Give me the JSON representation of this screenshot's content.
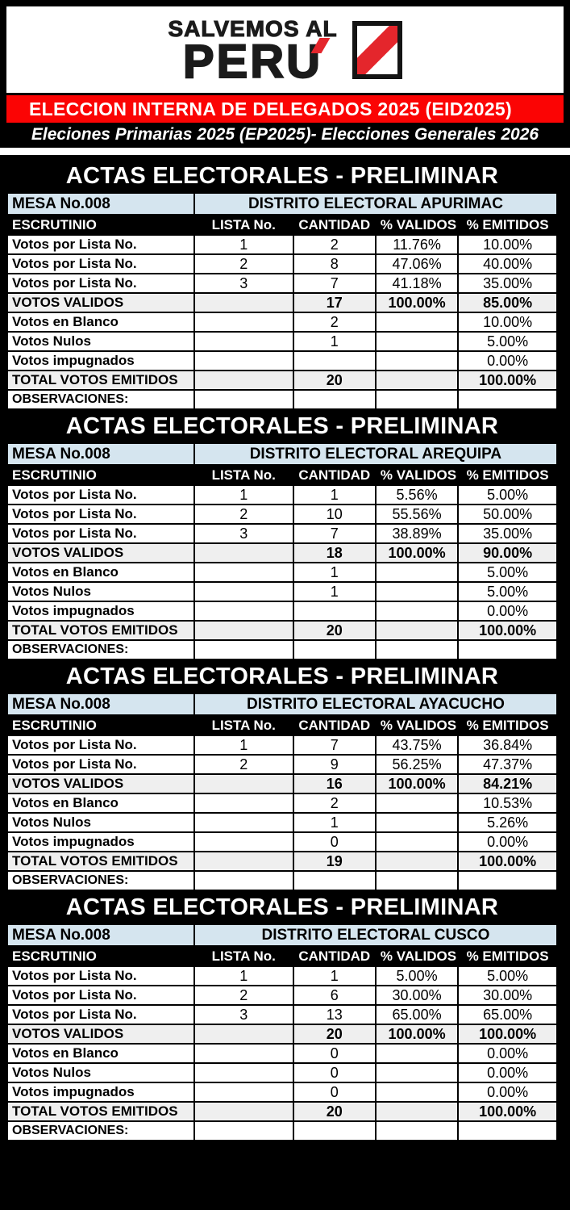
{
  "header": {
    "logo_line1": "SALVEMOS AL",
    "logo_line2": "PERU",
    "banner_text": "ELECCION INTERNA DE DELEGADOS 2025 (EID2025)",
    "subtitle_text": "Eleciones Primarias 2025 (EP2025)- Elecciones Generales 2026"
  },
  "colors": {
    "banner_red": "#fb0404",
    "logo_red": "#e4262c",
    "mesa_blue": "#d5e5ef",
    "total_gray": "#efefef"
  },
  "acta": {
    "section_title": "ACTAS ELECTORALES - PRELIMINAR",
    "mesa_label": "MESA No.008",
    "columns": [
      "ESCRUTINIO",
      "LISTA No.",
      "CANTIDAD",
      "% VALIDOS",
      "% EMITIDOS"
    ],
    "tables": [
      {
        "district": "DISTRITO ELECTORAL APURIMAC",
        "rows": [
          {
            "label": "Votos por Lista No.",
            "lista": "1",
            "cantidad": "2",
            "validos": "11.76%",
            "emitidos": "10.00%",
            "style": ""
          },
          {
            "label": "Votos por Lista No.",
            "lista": "2",
            "cantidad": "8",
            "validos": "47.06%",
            "emitidos": "40.00%",
            "style": ""
          },
          {
            "label": "Votos por Lista No.",
            "lista": "3",
            "cantidad": "7",
            "validos": "41.18%",
            "emitidos": "35.00%",
            "style": ""
          },
          {
            "label": "VOTOS VALIDOS",
            "lista": "",
            "cantidad": "17",
            "validos": "100.00%",
            "emitidos": "85.00%",
            "style": "total"
          },
          {
            "label": "Votos en Blanco",
            "lista": "",
            "cantidad": "2",
            "validos": "",
            "emitidos": "10.00%",
            "style": ""
          },
          {
            "label": "Votos Nulos",
            "lista": "",
            "cantidad": "1",
            "validos": "",
            "emitidos": "5.00%",
            "style": ""
          },
          {
            "label": "Votos impugnados",
            "lista": "",
            "cantidad": "",
            "validos": "",
            "emitidos": "0.00%",
            "style": ""
          },
          {
            "label": "TOTAL VOTOS EMITIDOS",
            "lista": "",
            "cantidad": "20",
            "validos": "",
            "emitidos": "100.00%",
            "style": "total"
          },
          {
            "label": "OBSERVACIONES:",
            "lista": "",
            "cantidad": "",
            "validos": "",
            "emitidos": "",
            "style": "obs"
          }
        ]
      },
      {
        "district": "DISTRITO ELECTORAL AREQUIPA",
        "rows": [
          {
            "label": "Votos por Lista No.",
            "lista": "1",
            "cantidad": "1",
            "validos": "5.56%",
            "emitidos": "5.00%",
            "style": ""
          },
          {
            "label": "Votos por Lista No.",
            "lista": "2",
            "cantidad": "10",
            "validos": "55.56%",
            "emitidos": "50.00%",
            "style": ""
          },
          {
            "label": "Votos por Lista No.",
            "lista": "3",
            "cantidad": "7",
            "validos": "38.89%",
            "emitidos": "35.00%",
            "style": ""
          },
          {
            "label": "VOTOS VALIDOS",
            "lista": "",
            "cantidad": "18",
            "validos": "100.00%",
            "emitidos": "90.00%",
            "style": "total"
          },
          {
            "label": "Votos en Blanco",
            "lista": "",
            "cantidad": "1",
            "validos": "",
            "emitidos": "5.00%",
            "style": ""
          },
          {
            "label": "Votos Nulos",
            "lista": "",
            "cantidad": "1",
            "validos": "",
            "emitidos": "5.00%",
            "style": ""
          },
          {
            "label": "Votos impugnados",
            "lista": "",
            "cantidad": "",
            "validos": "",
            "emitidos": "0.00%",
            "style": ""
          },
          {
            "label": "TOTAL VOTOS EMITIDOS",
            "lista": "",
            "cantidad": "20",
            "validos": "",
            "emitidos": "100.00%",
            "style": "total"
          },
          {
            "label": "OBSERVACIONES:",
            "lista": "",
            "cantidad": "",
            "validos": "",
            "emitidos": "",
            "style": "obs"
          }
        ]
      },
      {
        "district": "DISTRITO ELECTORAL AYACUCHO",
        "rows": [
          {
            "label": "Votos por Lista No.",
            "lista": "1",
            "cantidad": "7",
            "validos": "43.75%",
            "emitidos": "36.84%",
            "style": ""
          },
          {
            "label": "Votos por Lista No.",
            "lista": "2",
            "cantidad": "9",
            "validos": "56.25%",
            "emitidos": "47.37%",
            "style": ""
          },
          {
            "label": "VOTOS VALIDOS",
            "lista": "",
            "cantidad": "16",
            "validos": "100.00%",
            "emitidos": "84.21%",
            "style": "total"
          },
          {
            "label": "Votos en Blanco",
            "lista": "",
            "cantidad": "2",
            "validos": "",
            "emitidos": "10.53%",
            "style": ""
          },
          {
            "label": "Votos Nulos",
            "lista": "",
            "cantidad": "1",
            "validos": "",
            "emitidos": "5.26%",
            "style": ""
          },
          {
            "label": "Votos impugnados",
            "lista": "",
            "cantidad": "0",
            "validos": "",
            "emitidos": "0.00%",
            "style": ""
          },
          {
            "label": "TOTAL VOTOS EMITIDOS",
            "lista": "",
            "cantidad": "19",
            "validos": "",
            "emitidos": "100.00%",
            "style": "total"
          },
          {
            "label": "OBSERVACIONES:",
            "lista": "",
            "cantidad": "",
            "validos": "",
            "emitidos": "",
            "style": "obs"
          }
        ]
      },
      {
        "district": "DISTRITO ELECTORAL CUSCO",
        "rows": [
          {
            "label": "Votos por Lista No.",
            "lista": "1",
            "cantidad": "1",
            "validos": "5.00%",
            "emitidos": "5.00%",
            "style": ""
          },
          {
            "label": "Votos por Lista No.",
            "lista": "2",
            "cantidad": "6",
            "validos": "30.00%",
            "emitidos": "30.00%",
            "style": ""
          },
          {
            "label": "Votos por Lista No.",
            "lista": "3",
            "cantidad": "13",
            "validos": "65.00%",
            "emitidos": "65.00%",
            "style": ""
          },
          {
            "label": "VOTOS VALIDOS",
            "lista": "",
            "cantidad": "20",
            "validos": "100.00%",
            "emitidos": "100.00%",
            "style": "total"
          },
          {
            "label": "Votos en Blanco",
            "lista": "",
            "cantidad": "0",
            "validos": "",
            "emitidos": "0.00%",
            "style": ""
          },
          {
            "label": "Votos Nulos",
            "lista": "",
            "cantidad": "0",
            "validos": "",
            "emitidos": "0.00%",
            "style": ""
          },
          {
            "label": "Votos impugnados",
            "lista": "",
            "cantidad": "0",
            "validos": "",
            "emitidos": "0.00%",
            "style": ""
          },
          {
            "label": "TOTAL VOTOS EMITIDOS",
            "lista": "",
            "cantidad": "20",
            "validos": "",
            "emitidos": "100.00%",
            "style": "total"
          },
          {
            "label": "OBSERVACIONES:",
            "lista": "",
            "cantidad": "",
            "validos": "",
            "emitidos": "",
            "style": "obs"
          }
        ]
      }
    ]
  }
}
